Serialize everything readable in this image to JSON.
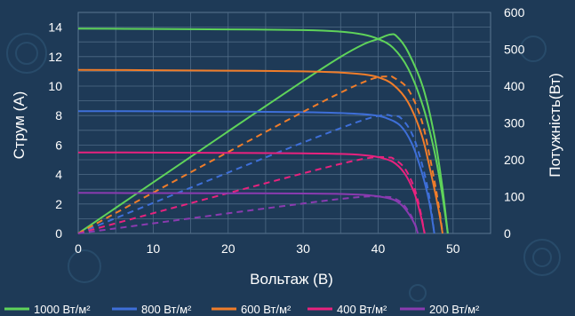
{
  "chart_data": {
    "type": "line",
    "xlabel": "Вольтаж (В)",
    "ylabel_left": "Струм (А)",
    "ylabel_right": "Потужність(Вт)",
    "xlim": [
      0,
      55
    ],
    "ylim_left": [
      0,
      15
    ],
    "ylim_right": [
      0,
      600
    ],
    "x_ticks": [
      0,
      10,
      20,
      30,
      40,
      50
    ],
    "y_ticks_left": [
      0,
      2,
      4,
      6,
      8,
      10,
      12,
      14
    ],
    "y_ticks_right": [
      0,
      100,
      200,
      300,
      400,
      500,
      600
    ],
    "grid": true,
    "legend_position": "bottom",
    "series": [
      {
        "name": "1000 Вт/м²",
        "color": "#5fd35a",
        "current": [
          [
            0,
            13.9
          ],
          [
            10,
            13.88
          ],
          [
            20,
            13.85
          ],
          [
            30,
            13.8
          ],
          [
            35,
            13.7
          ],
          [
            38,
            13.5
          ],
          [
            40,
            13.2
          ],
          [
            42,
            12.6
          ],
          [
            44,
            11.2
          ],
          [
            46,
            8.6
          ],
          [
            47.5,
            5.6
          ],
          [
            48.5,
            2.8
          ],
          [
            49.3,
            0
          ]
        ],
        "power": [
          [
            0,
            0
          ],
          [
            10,
            138.8
          ],
          [
            20,
            277
          ],
          [
            30,
            414
          ],
          [
            35,
            479.5
          ],
          [
            38,
            513
          ],
          [
            40,
            528
          ],
          [
            41.6,
            540
          ],
          [
            42.5,
            535
          ],
          [
            44,
            492.8
          ],
          [
            46,
            395.6
          ],
          [
            47.5,
            266
          ],
          [
            48.5,
            135.8
          ],
          [
            49.3,
            0
          ]
        ]
      },
      {
        "name": "800 Вт/м²",
        "color": "#3e6fd8",
        "current": [
          [
            0,
            8.3
          ],
          [
            10,
            8.29
          ],
          [
            20,
            8.27
          ],
          [
            30,
            8.23
          ],
          [
            36,
            8.15
          ],
          [
            39,
            8.05
          ],
          [
            41,
            7.85
          ],
          [
            43,
            7.3
          ],
          [
            44.5,
            6.1
          ],
          [
            45.8,
            4.2
          ],
          [
            46.8,
            2.2
          ],
          [
            47.5,
            0
          ]
        ],
        "power": [
          [
            0,
            0
          ],
          [
            10,
            82.9
          ],
          [
            20,
            165.4
          ],
          [
            30,
            246.9
          ],
          [
            36,
            293.4
          ],
          [
            39,
            314
          ],
          [
            41,
            321.9
          ],
          [
            42,
            318
          ],
          [
            43,
            313.9
          ],
          [
            44.5,
            271.5
          ],
          [
            45.8,
            192.4
          ],
          [
            46.8,
            103
          ],
          [
            47.5,
            0
          ]
        ]
      },
      {
        "name": "600 Вт/м²",
        "color": "#f07d2a",
        "current": [
          [
            0,
            11.1
          ],
          [
            10,
            11.08
          ],
          [
            20,
            11.05
          ],
          [
            30,
            11.0
          ],
          [
            35,
            10.92
          ],
          [
            38,
            10.8
          ],
          [
            40,
            10.6
          ],
          [
            42,
            10.1
          ],
          [
            44,
            8.9
          ],
          [
            45.8,
            6.7
          ],
          [
            47,
            4.2
          ],
          [
            48,
            1.8
          ],
          [
            48.6,
            0
          ]
        ],
        "power": [
          [
            0,
            0
          ],
          [
            10,
            110.8
          ],
          [
            20,
            221
          ],
          [
            30,
            330
          ],
          [
            35,
            382.2
          ],
          [
            38,
            410.4
          ],
          [
            40,
            424
          ],
          [
            41.5,
            426
          ],
          [
            42,
            424.2
          ],
          [
            44,
            391.6
          ],
          [
            45.8,
            306.9
          ],
          [
            47,
            197.4
          ],
          [
            48,
            86.4
          ],
          [
            48.6,
            0
          ]
        ]
      },
      {
        "name": "400 Вт/м²",
        "color": "#e8227e",
        "current": [
          [
            0,
            5.5
          ],
          [
            10,
            5.49
          ],
          [
            20,
            5.47
          ],
          [
            30,
            5.44
          ],
          [
            35,
            5.4
          ],
          [
            38,
            5.32
          ],
          [
            40,
            5.18
          ],
          [
            42,
            4.85
          ],
          [
            43.5,
            4.1
          ],
          [
            44.8,
            2.8
          ],
          [
            45.6,
            1.4
          ],
          [
            46.2,
            0
          ]
        ],
        "power": [
          [
            0,
            0
          ],
          [
            10,
            54.9
          ],
          [
            20,
            109.4
          ],
          [
            30,
            163.2
          ],
          [
            35,
            189
          ],
          [
            38,
            202.2
          ],
          [
            40,
            207.2
          ],
          [
            41.5,
            206
          ],
          [
            42,
            203.7
          ],
          [
            43.5,
            178.4
          ],
          [
            44.8,
            125.4
          ],
          [
            45.6,
            63.8
          ],
          [
            46.2,
            0
          ]
        ]
      },
      {
        "name": "200 Вт/м²",
        "color": "#8a3bb0",
        "current": [
          [
            0,
            2.75
          ],
          [
            10,
            2.74
          ],
          [
            20,
            2.73
          ],
          [
            30,
            2.71
          ],
          [
            35,
            2.68
          ],
          [
            38,
            2.62
          ],
          [
            40,
            2.52
          ],
          [
            42,
            2.3
          ],
          [
            43.2,
            1.9
          ],
          [
            44.2,
            1.25
          ],
          [
            44.9,
            0.6
          ],
          [
            45.3,
            0
          ]
        ],
        "power": [
          [
            0,
            0
          ],
          [
            10,
            27.4
          ],
          [
            20,
            54.6
          ],
          [
            30,
            81.3
          ],
          [
            35,
            93.8
          ],
          [
            38,
            99.6
          ],
          [
            40,
            100.8
          ],
          [
            41,
            99.5
          ],
          [
            42,
            96.6
          ],
          [
            43.2,
            82.1
          ],
          [
            44.2,
            55.3
          ],
          [
            44.9,
            26.9
          ],
          [
            45.3,
            0
          ]
        ]
      }
    ]
  }
}
